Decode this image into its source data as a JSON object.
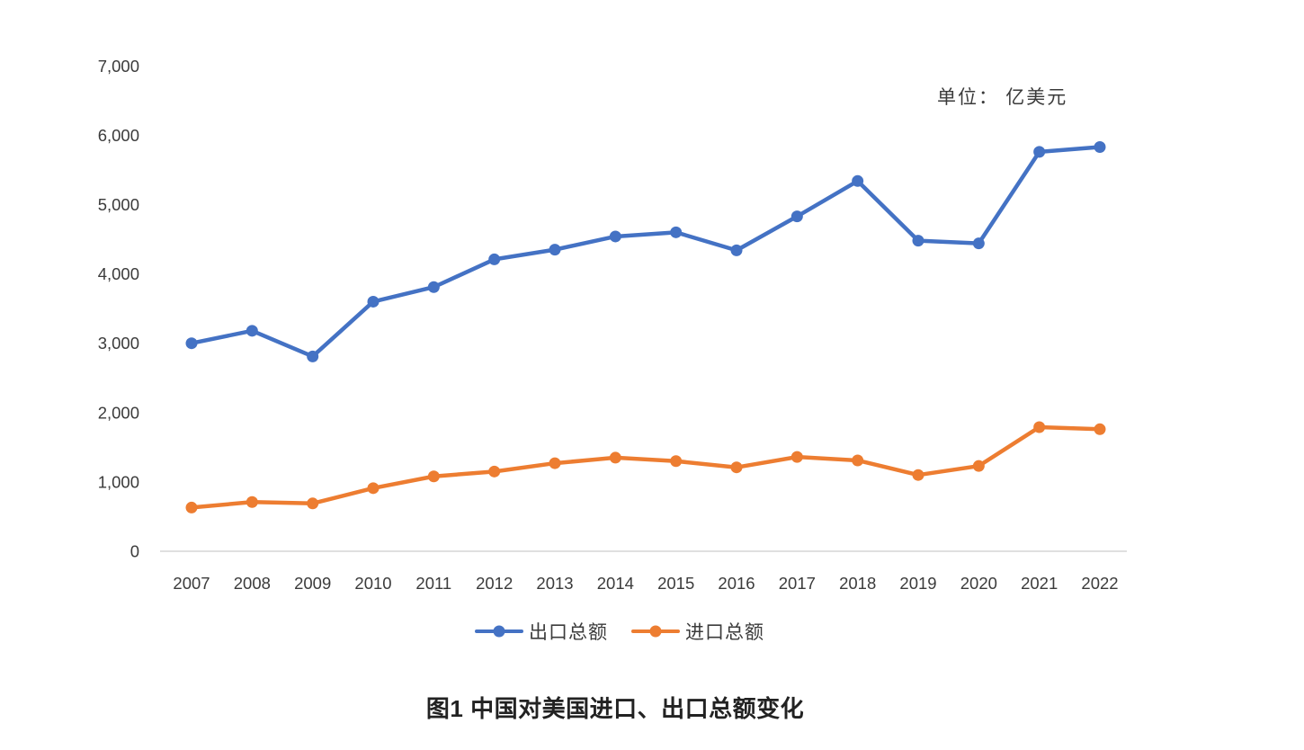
{
  "figure": {
    "unit_label": "单位： 亿美元",
    "caption": "图1 中国对美国进口、出口总额变化"
  },
  "chart_data": {
    "type": "line",
    "title": "图1 中国对美国进口、出口总额变化",
    "unit": "亿美元",
    "x": [
      "2007",
      "2008",
      "2009",
      "2010",
      "2011",
      "2012",
      "2013",
      "2014",
      "2015",
      "2016",
      "2017",
      "2018",
      "2019",
      "2020",
      "2021",
      "2022"
    ],
    "series": [
      {
        "name": "出口总额",
        "color": "#4472C4",
        "values": [
          3000,
          3180,
          2810,
          3600,
          3810,
          4210,
          4350,
          4540,
          4600,
          4340,
          4830,
          5340,
          4480,
          4440,
          5760,
          5830
        ]
      },
      {
        "name": "进口总额",
        "color": "#ED7D31",
        "values": [
          630,
          710,
          690,
          910,
          1080,
          1150,
          1270,
          1350,
          1300,
          1210,
          1360,
          1310,
          1100,
          1230,
          1790,
          1760
        ]
      }
    ],
    "ylim": [
      0,
      7000
    ],
    "yticks": [
      0,
      1000,
      2000,
      3000,
      4000,
      5000,
      6000,
      7000
    ],
    "ytick_labels": [
      "0",
      "1,000",
      "2,000",
      "3,000",
      "4,000",
      "5,000",
      "6,000",
      "7,000"
    ],
    "xlabel": "",
    "ylabel": "",
    "grid": false,
    "legend_position": "bottom",
    "axis_color": "#D6D6D6",
    "tick_text_color": "#3B3B3B"
  }
}
